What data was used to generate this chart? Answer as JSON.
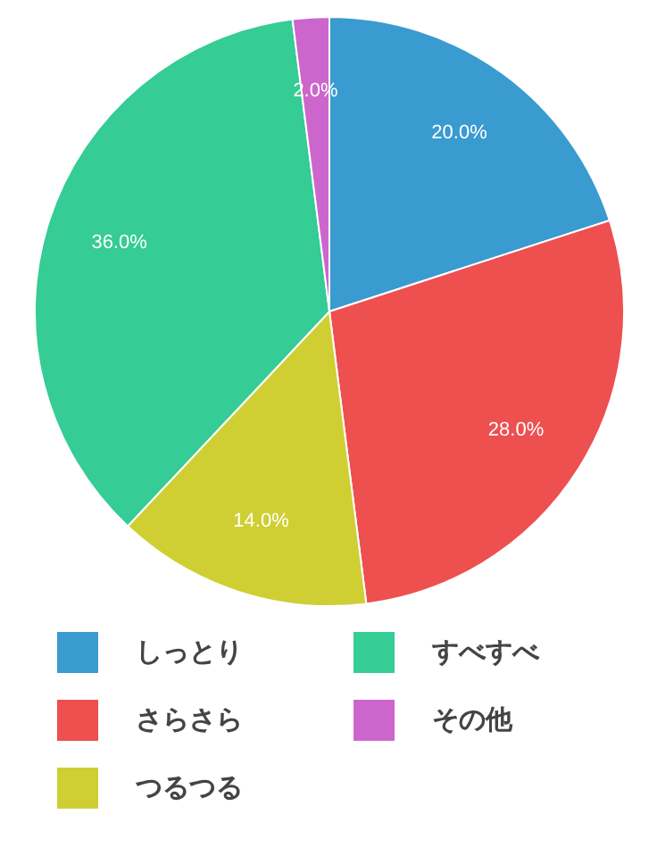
{
  "chart_data": {
    "type": "pie",
    "categories": [
      "しっとり",
      "さらさら",
      "つるつる",
      "すべすべ",
      "その他"
    ],
    "values": [
      20,
      28,
      14,
      36,
      2
    ],
    "colors": [
      "#3a9bd0",
      "#ee4f4f",
      "#cfcf33",
      "#35cc95",
      "#cc66cc"
    ],
    "value_labels": [
      "20.0%",
      "28.0%",
      "14.0%",
      "36.0%",
      "2.0%"
    ],
    "legend": "bottom"
  }
}
